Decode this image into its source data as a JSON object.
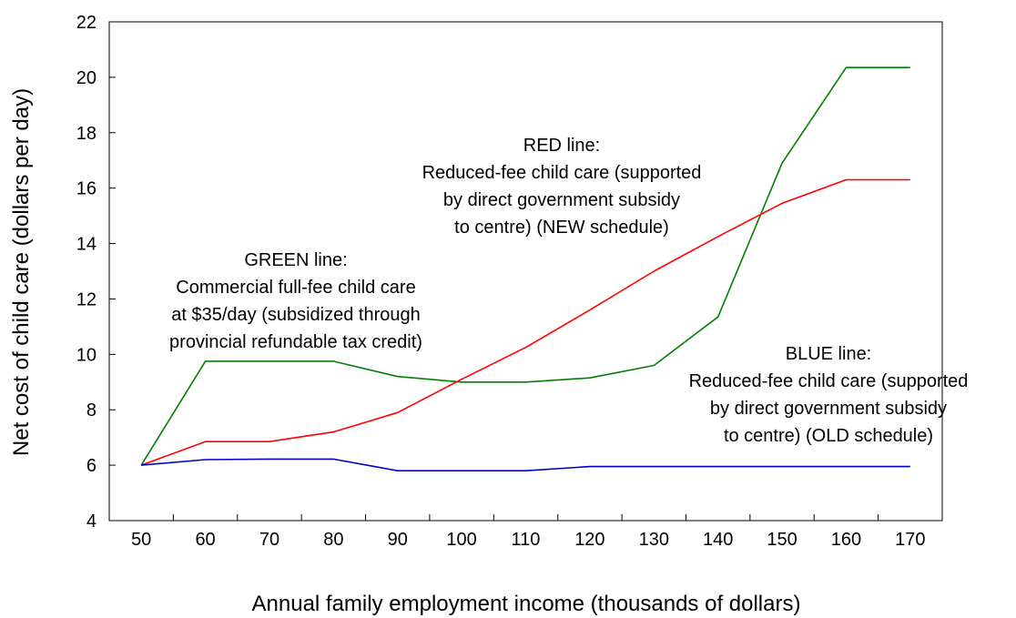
{
  "chart_data": {
    "type": "line",
    "title": "",
    "xlabel": "Annual family employment income (thousands of dollars)",
    "ylabel": "Net cost of child care (dollars per day)",
    "x": [
      50,
      60,
      70,
      80,
      90,
      100,
      110,
      120,
      130,
      140,
      150,
      160,
      170
    ],
    "xlim": [
      45,
      175
    ],
    "ylim": [
      4,
      22
    ],
    "yticks": [
      4,
      6,
      8,
      10,
      12,
      14,
      16,
      18,
      20,
      22
    ],
    "grid": false,
    "series": [
      {
        "name": "GREEN line",
        "color": "#008000",
        "values": [
          6.0,
          9.75,
          9.75,
          9.75,
          9.2,
          9.0,
          9.0,
          9.15,
          9.6,
          11.35,
          16.9,
          20.35,
          20.35
        ]
      },
      {
        "name": "RED line",
        "color": "#ff0000",
        "values": [
          6.0,
          6.85,
          6.85,
          7.2,
          7.9,
          9.1,
          10.25,
          11.6,
          13.0,
          14.25,
          15.45,
          16.3,
          16.3
        ]
      },
      {
        "name": "BLUE line",
        "color": "#0000cc",
        "values": [
          6.0,
          6.2,
          6.22,
          6.22,
          5.8,
          5.8,
          5.8,
          5.95,
          5.95,
          5.95,
          5.95,
          5.95,
          5.95
        ]
      }
    ],
    "annotations": [
      {
        "id": "green",
        "lines": [
          "GREEN line:",
          "Commercial full-fee child care",
          "at $35/day (subsidized through",
          "provincial refundable tax credit)"
        ]
      },
      {
        "id": "red",
        "lines": [
          "RED line:",
          "Reduced-fee child care (supported",
          "by direct government subsidy",
          "to centre) (NEW schedule)"
        ]
      },
      {
        "id": "blue",
        "lines": [
          "BLUE line:",
          "Reduced-fee child care (supported",
          "by direct government subsidy",
          "to centre) (OLD schedule)"
        ]
      }
    ]
  }
}
